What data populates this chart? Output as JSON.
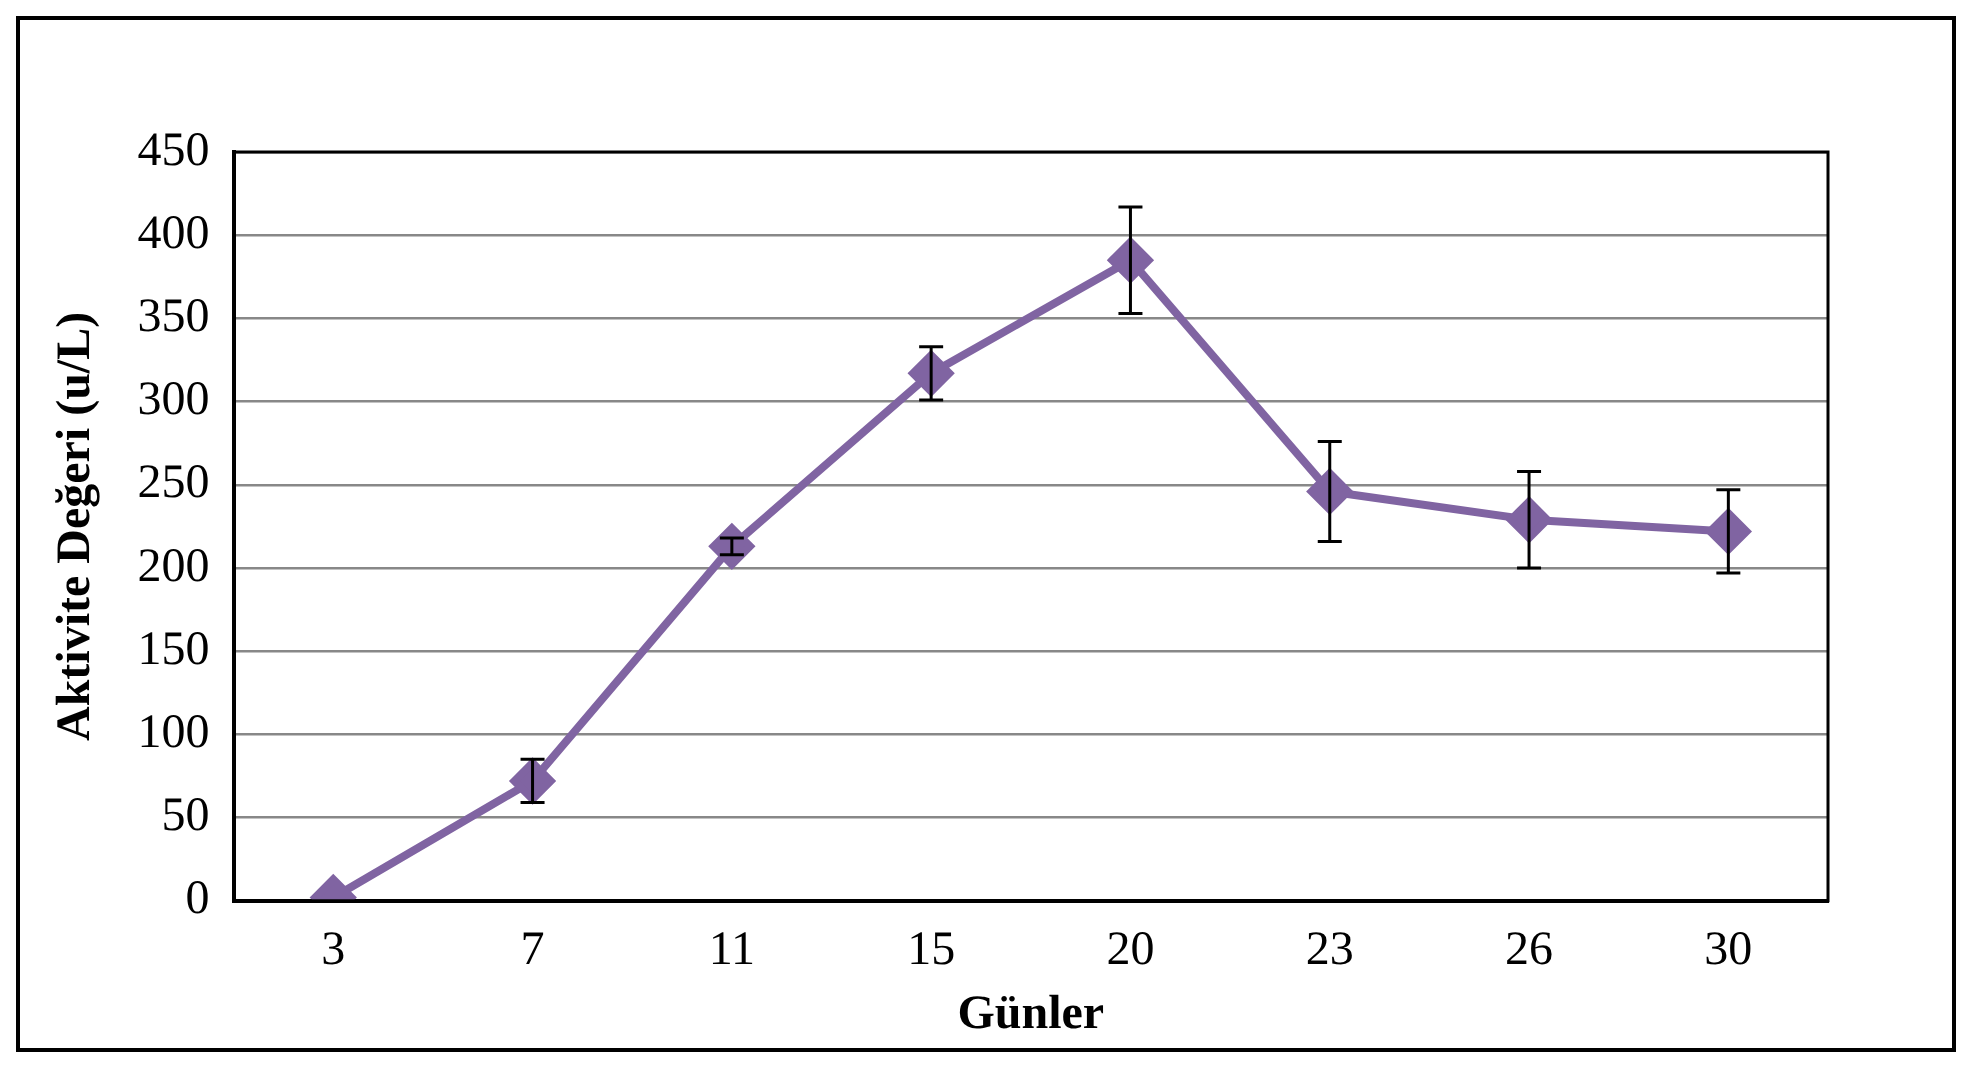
{
  "chart_data": {
    "type": "line",
    "xlabel": "Günler",
    "ylabel": "Aktivite Değeri (u/L)",
    "categories": [
      "3",
      "7",
      "11",
      "15",
      "20",
      "23",
      "26",
      "30"
    ],
    "series": [
      {
        "color": "#8064a2",
        "values": [
          2,
          72,
          213,
          317,
          385,
          246,
          229,
          222
        ],
        "errors": [
          null,
          13,
          5,
          16,
          32,
          30,
          29,
          25
        ]
      }
    ],
    "ylim": [
      0,
      450
    ],
    "yticks": [
      0,
      50,
      100,
      150,
      200,
      250,
      300,
      350,
      400,
      450
    ],
    "grid": "y",
    "legend": false,
    "marker": "diamond",
    "line_style": "solid"
  }
}
